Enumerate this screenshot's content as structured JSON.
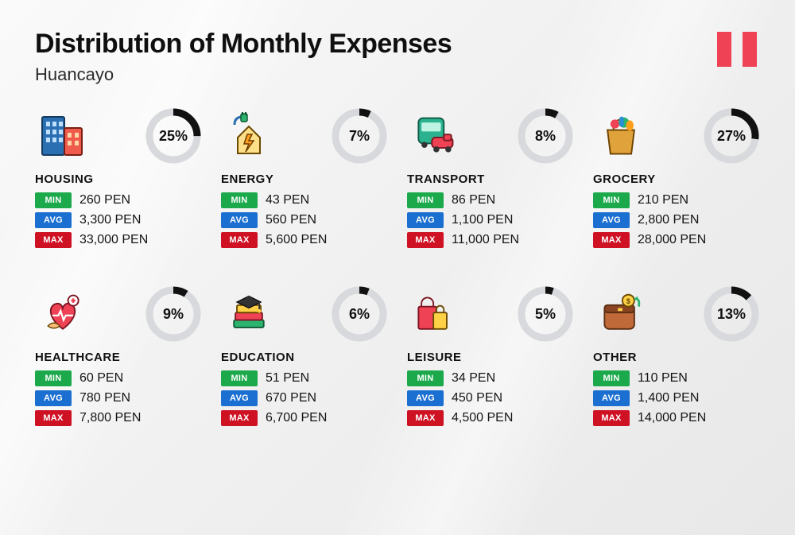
{
  "header": {
    "title": "Distribution of Monthly Expenses",
    "subtitle": "Huancayo",
    "flag_color": "#ef4255"
  },
  "labels": {
    "min": "MIN",
    "avg": "AVG",
    "max": "MAX"
  },
  "colors": {
    "min_tag": "#1ba94c",
    "avg_tag": "#1b6fd1",
    "max_tag": "#cf1124",
    "ring_track": "#d7d9dc",
    "ring_arc": "#111111",
    "background_from": "#fafafa",
    "background_to": "#e8e8e8"
  },
  "ring": {
    "radius": 30,
    "stroke_width": 9
  },
  "categories": [
    {
      "key": "housing",
      "name": "HOUSING",
      "percent": 25,
      "min": "260 PEN",
      "avg": "3,300 PEN",
      "max": "33,000 PEN",
      "icon": "housing-icon"
    },
    {
      "key": "energy",
      "name": "ENERGY",
      "percent": 7,
      "min": "43 PEN",
      "avg": "560 PEN",
      "max": "5,600 PEN",
      "icon": "energy-icon"
    },
    {
      "key": "transport",
      "name": "TRANSPORT",
      "percent": 8,
      "min": "86 PEN",
      "avg": "1,100 PEN",
      "max": "11,000 PEN",
      "icon": "transport-icon"
    },
    {
      "key": "grocery",
      "name": "GROCERY",
      "percent": 27,
      "min": "210 PEN",
      "avg": "2,800 PEN",
      "max": "28,000 PEN",
      "icon": "grocery-icon"
    },
    {
      "key": "healthcare",
      "name": "HEALTHCARE",
      "percent": 9,
      "min": "60 PEN",
      "avg": "780 PEN",
      "max": "7,800 PEN",
      "icon": "healthcare-icon"
    },
    {
      "key": "education",
      "name": "EDUCATION",
      "percent": 6,
      "min": "51 PEN",
      "avg": "670 PEN",
      "max": "6,700 PEN",
      "icon": "education-icon"
    },
    {
      "key": "leisure",
      "name": "LEISURE",
      "percent": 5,
      "min": "34 PEN",
      "avg": "450 PEN",
      "max": "4,500 PEN",
      "icon": "leisure-icon"
    },
    {
      "key": "other",
      "name": "OTHER",
      "percent": 13,
      "min": "110 PEN",
      "avg": "1,400 PEN",
      "max": "14,000 PEN",
      "icon": "other-icon"
    }
  ]
}
